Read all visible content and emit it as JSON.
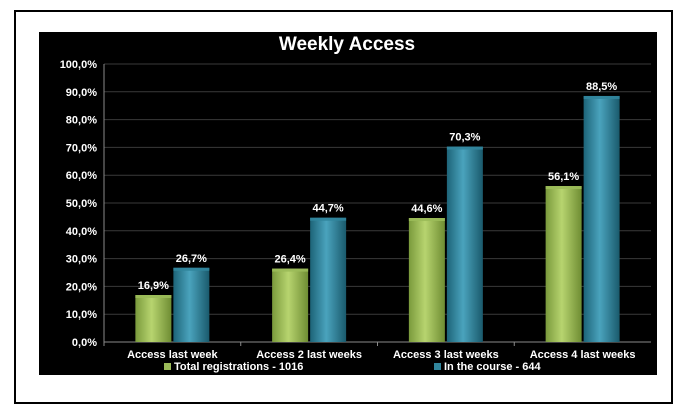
{
  "chart_data": {
    "type": "bar",
    "title": "Weekly Access",
    "categories": [
      "Access last week",
      "Access 2 last weeks",
      "Access 3 last weeks",
      "Access 4 last weeks"
    ],
    "series": [
      {
        "name": "Total registrations - 1016",
        "values": [
          16.9,
          26.4,
          44.6,
          56.1
        ],
        "labels": [
          "16,9%",
          "26,4%",
          "44,6%",
          "56,1%"
        ],
        "color": "#9bbb59"
      },
      {
        "name": "In the course - 644",
        "values": [
          26.7,
          44.7,
          70.3,
          88.5
        ],
        "labels": [
          "26,7%",
          "44,7%",
          "70,3%",
          "88,5%"
        ],
        "color": "#31859c"
      }
    ],
    "yticks": [
      "0,0%",
      "10,0%",
      "20,0%",
      "30,0%",
      "40,0%",
      "50,0%",
      "60,0%",
      "70,0%",
      "80,0%",
      "90,0%",
      "100,0%"
    ],
    "ylim": [
      0,
      100
    ],
    "grid": true,
    "legend_position": "bottom",
    "xlabel": "",
    "ylabel": ""
  },
  "colors": {
    "background": "#000000",
    "frame": "#000000",
    "gridline": "#3a3a3a",
    "text": "#ffffff"
  }
}
